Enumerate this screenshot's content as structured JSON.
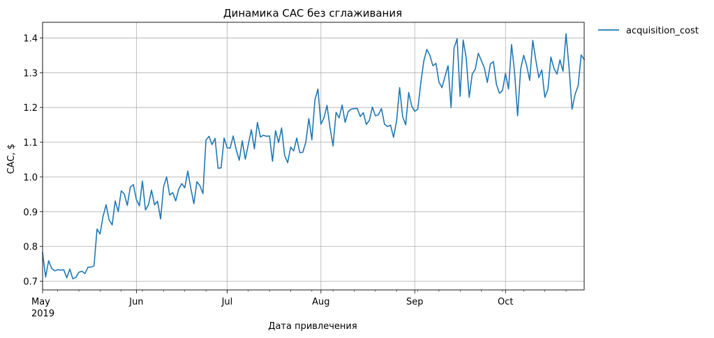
{
  "chart_data": {
    "type": "line",
    "title": "Динамика CAC без сглаживания",
    "xlabel": "Дата привлечения",
    "ylabel": "CAC, $",
    "xlim": [
      "2019-05-01",
      "2019-10-27"
    ],
    "ylim": [
      0.675,
      1.445
    ],
    "grid": true,
    "legend_position": "outside-top-right",
    "x_ticks": [
      {
        "date": "2019-05-01",
        "label": "May",
        "sublabel": "2019"
      },
      {
        "date": "2019-06-01",
        "label": "Jun"
      },
      {
        "date": "2019-07-01",
        "label": "Jul"
      },
      {
        "date": "2019-08-01",
        "label": "Aug"
      },
      {
        "date": "2019-09-01",
        "label": "Sep"
      },
      {
        "date": "2019-10-01",
        "label": "Oct"
      }
    ],
    "y_ticks": [
      {
        "value": 0.7,
        "label": "0.7"
      },
      {
        "value": 0.8,
        "label": "0.8"
      },
      {
        "value": 0.9,
        "label": "0.9"
      },
      {
        "value": 1.0,
        "label": "1.0"
      },
      {
        "value": 1.1,
        "label": "1.1"
      },
      {
        "value": 1.2,
        "label": "1.2"
      },
      {
        "value": 1.3,
        "label": "1.3"
      },
      {
        "value": 1.4,
        "label": "1.4"
      }
    ],
    "series": [
      {
        "name": "acquisition_cost",
        "color": "#1f77b4",
        "start_date": "2019-05-01",
        "values": [
          0.782,
          0.712,
          0.759,
          0.737,
          0.73,
          0.733,
          0.732,
          0.733,
          0.71,
          0.735,
          0.707,
          0.711,
          0.726,
          0.729,
          0.722,
          0.74,
          0.741,
          0.744,
          0.85,
          0.836,
          0.887,
          0.92,
          0.876,
          0.862,
          0.931,
          0.9,
          0.96,
          0.951,
          0.918,
          0.971,
          0.978,
          0.935,
          0.917,
          0.988,
          0.905,
          0.92,
          0.962,
          0.92,
          0.93,
          0.879,
          0.972,
          1.0,
          0.948,
          0.955,
          0.931,
          0.965,
          0.981,
          0.969,
          1.017,
          0.967,
          0.923,
          0.986,
          0.975,
          0.952,
          1.106,
          1.117,
          1.093,
          1.111,
          1.025,
          1.026,
          1.112,
          1.084,
          1.083,
          1.118,
          1.078,
          1.048,
          1.104,
          1.051,
          1.094,
          1.136,
          1.081,
          1.157,
          1.115,
          1.12,
          1.117,
          1.118,
          1.045,
          1.133,
          1.099,
          1.141,
          1.062,
          1.041,
          1.086,
          1.075,
          1.112,
          1.07,
          1.071,
          1.1,
          1.168,
          1.107,
          1.221,
          1.253,
          1.152,
          1.17,
          1.206,
          1.142,
          1.089,
          1.186,
          1.17,
          1.207,
          1.157,
          1.188,
          1.195,
          1.197,
          1.197,
          1.174,
          1.185,
          1.151,
          1.163,
          1.201,
          1.176,
          1.179,
          1.197,
          1.152,
          1.145,
          1.149,
          1.114,
          1.161,
          1.257,
          1.174,
          1.15,
          1.243,
          1.204,
          1.189,
          1.195,
          1.27,
          1.334,
          1.367,
          1.35,
          1.32,
          1.327,
          1.273,
          1.257,
          1.289,
          1.32,
          1.2,
          1.371,
          1.398,
          1.232,
          1.394,
          1.343,
          1.229,
          1.296,
          1.31,
          1.356,
          1.335,
          1.314,
          1.272,
          1.325,
          1.332,
          1.266,
          1.241,
          1.249,
          1.298,
          1.253,
          1.381,
          1.301,
          1.176,
          1.31,
          1.35,
          1.32,
          1.278,
          1.393,
          1.337,
          1.286,
          1.308,
          1.229,
          1.252,
          1.345,
          1.313,
          1.296,
          1.337,
          1.304,
          1.412,
          1.315,
          1.195,
          1.238,
          1.262,
          1.351,
          1.338
        ]
      }
    ]
  }
}
